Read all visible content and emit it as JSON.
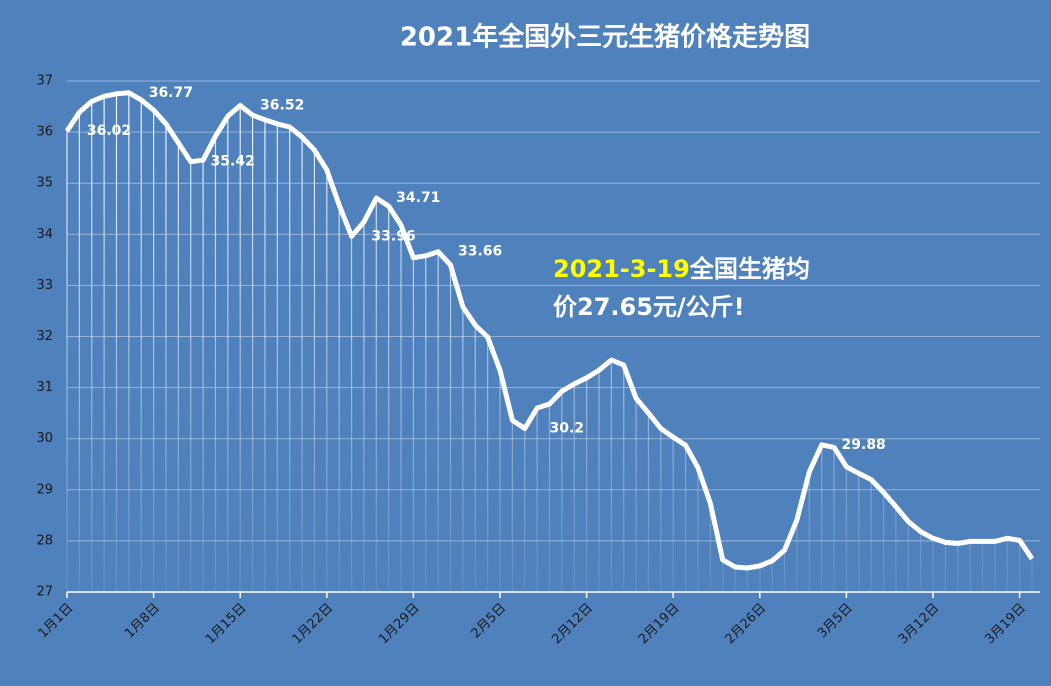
{
  "chart_data": {
    "type": "line",
    "title": "2021年全国外三元生猪价格走势图",
    "categories": [
      "1月1日",
      null,
      null,
      null,
      null,
      null,
      null,
      "1月8日",
      null,
      null,
      null,
      null,
      null,
      null,
      "1月15日",
      null,
      null,
      null,
      null,
      null,
      null,
      "1月22日",
      null,
      null,
      null,
      null,
      null,
      null,
      "1月29日",
      null,
      null,
      null,
      null,
      null,
      null,
      "2月5日",
      null,
      null,
      null,
      null,
      null,
      null,
      "2月12日",
      null,
      null,
      null,
      null,
      null,
      null,
      "2月19日",
      null,
      null,
      null,
      null,
      null,
      null,
      "2月26日",
      null,
      null,
      null,
      null,
      null,
      null,
      "3月5日",
      null,
      null,
      null,
      null,
      null,
      null,
      "3月12日",
      null,
      null,
      null,
      null,
      null,
      null,
      "3月19日",
      null
    ],
    "values": [
      36.02,
      36.39,
      36.6,
      36.7,
      36.75,
      36.77,
      36.63,
      36.43,
      36.16,
      35.79,
      35.42,
      35.45,
      35.92,
      36.31,
      36.52,
      36.33,
      36.24,
      36.16,
      36.1,
      35.9,
      35.65,
      35.26,
      34.57,
      33.96,
      34.24,
      34.71,
      34.55,
      34.18,
      33.54,
      33.58,
      33.66,
      33.4,
      32.58,
      32.22,
      31.99,
      31.34,
      30.36,
      30.2,
      30.6,
      30.68,
      30.93,
      31.07,
      31.19,
      31.34,
      31.54,
      31.44,
      30.79,
      30.5,
      30.2,
      30.03,
      29.87,
      29.43,
      28.74,
      27.63,
      27.49,
      27.47,
      27.51,
      27.61,
      27.82,
      28.41,
      29.35,
      29.88,
      29.83,
      29.45,
      29.32,
      29.2,
      28.95,
      28.67,
      28.38,
      28.18,
      28.05,
      27.97,
      27.95,
      27.99,
      27.99,
      27.99,
      28.05,
      28.01,
      27.65
    ],
    "value_labels": [
      "36.02",
      null,
      null,
      null,
      null,
      "36.77",
      null,
      null,
      null,
      null,
      "35.42",
      null,
      null,
      null,
      "36.52",
      null,
      null,
      null,
      null,
      null,
      null,
      null,
      null,
      "33.96",
      null,
      "34.71",
      null,
      null,
      null,
      null,
      "33.66",
      null,
      null,
      null,
      null,
      null,
      null,
      "30.2",
      null,
      null,
      null,
      null,
      null,
      null,
      null,
      null,
      null,
      null,
      null,
      null,
      null,
      null,
      null,
      null,
      null,
      null,
      null,
      null,
      null,
      null,
      null,
      "29.88",
      null,
      null,
      null,
      null,
      null,
      null,
      null,
      null,
      null,
      null,
      null,
      null,
      null,
      null,
      null,
      null,
      null
    ],
    "color": "#ffffff",
    "ylim": [
      27,
      37
    ],
    "yticks": [
      27,
      28,
      29,
      30,
      31,
      32,
      33,
      34,
      35,
      36,
      37
    ],
    "grid": true,
    "annotation_date": "2021-3-19",
    "annotation_text": "全国生猪均价27.65元/公斤!"
  }
}
